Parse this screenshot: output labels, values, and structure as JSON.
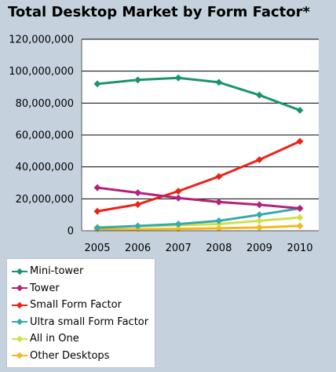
{
  "chart_data": {
    "type": "line",
    "title": "Total Desktop Market by Form Factor*",
    "x": [
      "2005",
      "2006",
      "2007",
      "2008",
      "2009",
      "2010"
    ],
    "ylim": [
      0,
      120000000
    ],
    "yticks": [
      0,
      20000000,
      40000000,
      60000000,
      80000000,
      100000000,
      120000000
    ],
    "ytick_labels": [
      "0",
      "20,000,000",
      "40,000,000",
      "60,000,000",
      "80,000,000",
      "100,000,000",
      "120,000,000"
    ],
    "grid": true,
    "legend_position": "bottom-left",
    "marker": "diamond",
    "series": [
      {
        "name": "Mini-tower",
        "color": "#1a9470",
        "values": [
          92000000,
          94500000,
          95800000,
          93000000,
          85000000,
          75500000
        ]
      },
      {
        "name": "Tower",
        "color": "#b5207a",
        "values": [
          27000000,
          23800000,
          20500000,
          18000000,
          16300000,
          14000000
        ]
      },
      {
        "name": "Small Form Factor",
        "color": "#ea2418",
        "values": [
          12200000,
          16500000,
          24800000,
          34000000,
          44500000,
          56000000
        ]
      },
      {
        "name": "Ultra small Form Factor",
        "color": "#35aab0",
        "values": [
          1800000,
          3000000,
          4200000,
          6200000,
          10000000,
          14000000
        ]
      },
      {
        "name": "All in One",
        "color": "#cfe04a",
        "values": [
          2200000,
          2800000,
          3500000,
          4200000,
          6200000,
          8300000
        ]
      },
      {
        "name": "Other Desktops",
        "color": "#f3b81d",
        "values": [
          800000,
          1000000,
          1200000,
          1500000,
          2000000,
          3000000
        ]
      }
    ]
  }
}
